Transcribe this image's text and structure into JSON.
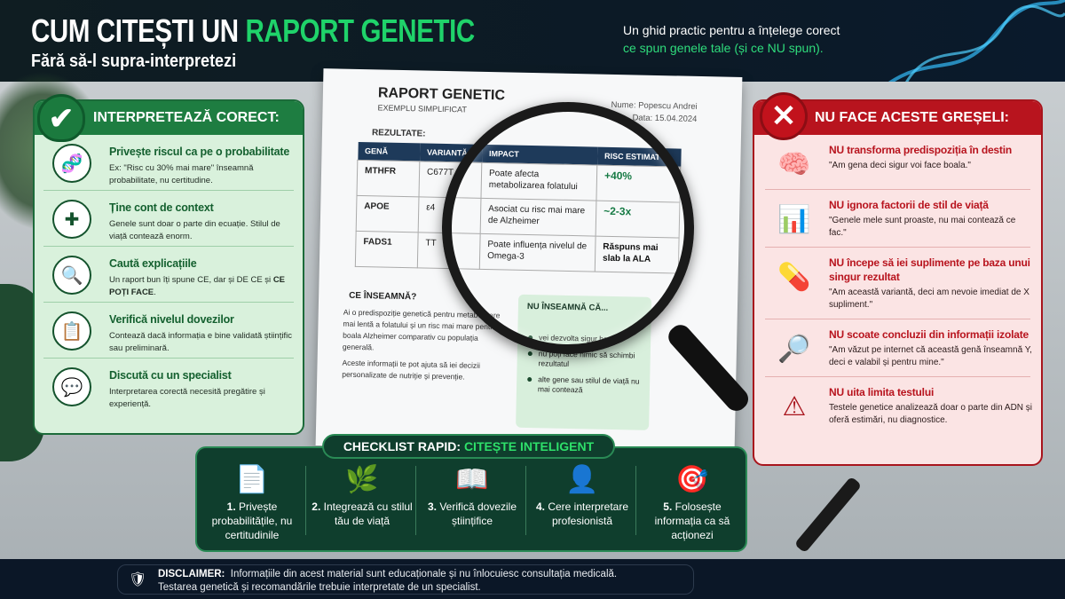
{
  "header": {
    "title_part1": "CUM CITEȘTI UN ",
    "title_part2": "RAPORT GENETIC",
    "subtitle": "Fără să-l supra-interpretezi",
    "tagline_line1": "Un ghid practic pentru a înțelege corect",
    "tagline_line2": "ce spun genele tale (și ce NU spun)."
  },
  "left_panel": {
    "title": "INTERPRETEAZĂ CORECT:",
    "icon": "check-icon",
    "accent": "#1e7d41",
    "items": [
      {
        "icon": "dna-icon",
        "glyph": "🧬",
        "title": "Privește riscul ca pe o probabilitate",
        "desc": "Ex: \"Risc cu 30% mai mare\" înseamnă probabilitate, nu certitudine."
      },
      {
        "icon": "puzzle-icon",
        "glyph": "✚",
        "title": "Ține cont de context",
        "desc": "Genele sunt doar o parte din ecuație. Stilul de viață contează enorm."
      },
      {
        "icon": "magnifier-chart-icon",
        "glyph": "🔍",
        "title": "Caută explicațiile",
        "desc_pre": "Un raport bun îți spune CE, dar și DE CE și ",
        "desc_bold": "CE POȚI FACE",
        "desc_post": "."
      },
      {
        "icon": "clipboard-checklist-icon",
        "glyph": "📋",
        "title": "Verifică nivelul dovezilor",
        "desc": "Contează dacă informația e bine validată științific sau preliminară."
      },
      {
        "icon": "chat-specialist-icon",
        "glyph": "💬",
        "title": "Discută cu un specialist",
        "desc": "Interpretarea corectă necesită pregătire și experiență."
      }
    ]
  },
  "right_panel": {
    "title": "NU FACE ACESTE GREȘELI:",
    "icon": "x-icon",
    "accent": "#b8141e",
    "items": [
      {
        "icon": "brain-icon",
        "glyph": "🧠",
        "title": "NU transforma predispoziția în destin",
        "desc": "\"Am gena deci sigur voi face boala.\""
      },
      {
        "icon": "bar-chart-icon",
        "glyph": "📊",
        "title": "NU ignora factorii de stil de viață",
        "desc": "\"Genele mele sunt proaste, nu mai contează ce fac.\""
      },
      {
        "icon": "pill-icon",
        "glyph": "💊",
        "title": "NU începe să iei suplimente pe baza unui singur rezultat",
        "desc": "\"Am această variantă, deci am nevoie imediat de X supliment.\""
      },
      {
        "icon": "magnifier-dna-icon",
        "glyph": "🔎",
        "title": "NU scoate concluzii din informații izolate",
        "desc": "\"Am văzut pe internet că această genă înseamnă Y, deci e valabil și pentru mine.\""
      },
      {
        "icon": "warning-icon",
        "glyph": "⚠",
        "title": "NU uita limita testului",
        "desc": "Testele genetice analizează doar o parte din ADN și oferă estimări, nu diagnostice."
      }
    ]
  },
  "report": {
    "title": "RAPORT GENETIC",
    "subtitle": "EXEMPLU SIMPLIFICAT",
    "name": "Nume: Popescu Andrei",
    "date": "Data: 15.04.2024",
    "results_label": "REZULTATE:",
    "columns": [
      "GENĂ",
      "VARIANTĂ",
      "IMPACT",
      "RISC ESTIMAT"
    ],
    "rows": [
      [
        "MTHFR",
        "C677T",
        "Poate afecta metabolizarea folatului",
        "+40%"
      ],
      [
        "APOE",
        "ε4",
        "Asociat cu risc mai mare de Alzheimer",
        "~2-3x"
      ],
      [
        "FADS1",
        "TT",
        "Poate influența nivelul de Omega-3",
        "Răspuns mai slab la ALA"
      ]
    ],
    "meaning_title": "CE ÎNSEAMNĂ?",
    "meaning_p1": "Ai o predispoziție genetică pentru metabolizare mai lentă a folatului și un risc mai mare pentru boala Alzheimer comparativ cu populația generală.",
    "meaning_p2": "Aceste informații te pot ajuta să iei decizii personalizate de nutriție și prevenție.",
    "not_mean_title": "NU ÎNSEAMNĂ CĂ...",
    "not_mean_items": [
      "vei dezvolta sigur boala",
      "nu poți face nimic să schimbi rezultatul",
      "alte gene sau stilul de viață nu mai contează"
    ]
  },
  "checklist": {
    "label_part1": "CHECKLIST RAPID: ",
    "label_part2": "CITEȘTE INTELIGENT",
    "items": [
      {
        "icon": "document-icon",
        "glyph": "📄",
        "num": "1.",
        "text": "Privește probabilitățile, nu certitudinile"
      },
      {
        "icon": "leaf-icon",
        "glyph": "🌿",
        "num": "2.",
        "text": "Integrează cu stilul tău de viață"
      },
      {
        "icon": "open-book-icon",
        "glyph": "📖",
        "num": "3.",
        "text": "Verifică dovezile științifice"
      },
      {
        "icon": "person-icon",
        "glyph": "👤",
        "num": "4.",
        "text": "Cere interpretare profesionistă"
      },
      {
        "icon": "target-icon",
        "glyph": "🎯",
        "num": "5.",
        "text": "Folosește informația ca să acționezi"
      }
    ]
  },
  "footer": {
    "label": "DISCLAIMER:",
    "line1": "Informațiile din acest material sunt educaționale și nu înlocuiesc consultația medicală.",
    "line2": "Testarea genetică și recomandările trebuie interpretate de un specialist.",
    "icon": "shield-check-icon"
  }
}
